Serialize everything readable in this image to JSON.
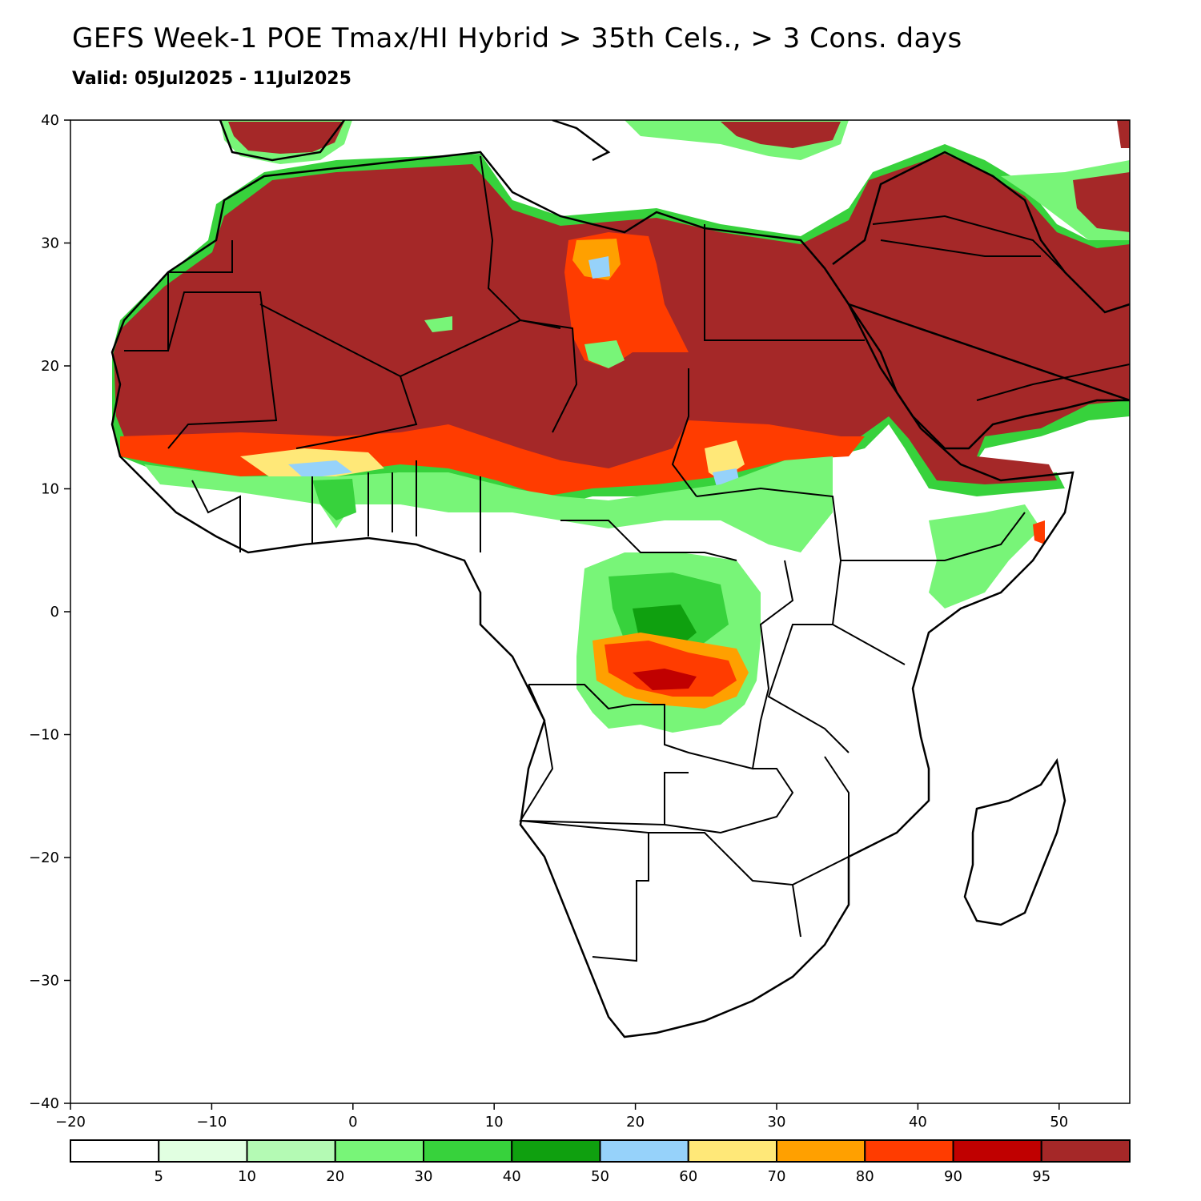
{
  "header": {
    "title": "GEFS Week-1 POE Tmax/HI Hybrid > 35th Cels., > 3 Cons. days",
    "subtitle": "Valid: 05Jul2025 - 11Jul2025"
  },
  "map": {
    "lon_range": [
      -20,
      55
    ],
    "lat_range": [
      -40,
      40
    ],
    "x_ticks": [
      "−20",
      "−10",
      "0",
      "10",
      "20",
      "30",
      "40",
      "50"
    ],
    "y_ticks": [
      "40",
      "30",
      "20",
      "10",
      "0",
      "−10",
      "−20",
      "−30",
      "−40"
    ]
  },
  "colorbar": {
    "colors": [
      "#ffffff",
      "#e1ffe1",
      "#b4fab4",
      "#78f578",
      "#37d23c",
      "#0fa00f",
      "#96d2fa",
      "#ffe878",
      "#ffa000",
      "#ff3c00",
      "#c00000",
      "#a52828"
    ],
    "labels": [
      "5",
      "10",
      "20",
      "30",
      "40",
      "50",
      "60",
      "70",
      "80",
      "90",
      "95"
    ]
  }
}
